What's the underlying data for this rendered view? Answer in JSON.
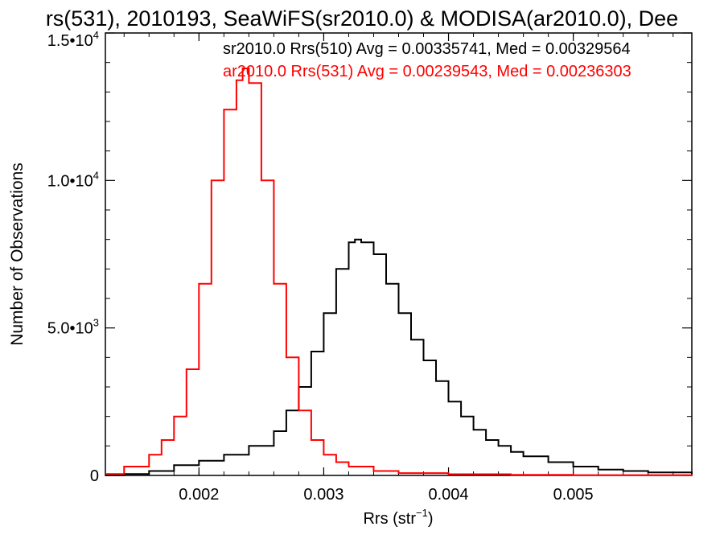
{
  "chart_data": {
    "type": "line",
    "title": "rs(531), 2010193, SeaWiFS(sr2010.0) & MODISA(ar2010.0), Dee",
    "xlabel": "Rrs (str",
    "xlabel_sup": "−1",
    "xlabel_close": ")",
    "ylabel": "Number of Observations",
    "xlim": [
      0.00125,
      0.00595
    ],
    "ylim": [
      0,
      15000
    ],
    "x_ticks": [
      {
        "value": 0.002,
        "label": "0.002"
      },
      {
        "value": 0.003,
        "label": "0.003"
      },
      {
        "value": 0.004,
        "label": "0.004"
      },
      {
        "value": 0.005,
        "label": "0.005"
      }
    ],
    "y_ticks": [
      {
        "value": 0,
        "base": "0",
        "exp": ""
      },
      {
        "value": 5000,
        "base": "5.0•10",
        "exp": "3"
      },
      {
        "value": 10000,
        "base": "1.0•10",
        "exp": "4"
      },
      {
        "value": 15000,
        "base": "1.5•10",
        "exp": "4"
      }
    ],
    "legend_position": "top-right",
    "series": [
      {
        "name": "sr2010.0 Rrs(510) Avg = 0.00335741, Med = 0.00329564",
        "color": "#000000",
        "x": [
          0.00125,
          0.0014,
          0.0016,
          0.0018,
          0.002,
          0.0022,
          0.0024,
          0.0026,
          0.0027,
          0.0028,
          0.0029,
          0.003,
          0.0031,
          0.0032,
          0.00325,
          0.0033,
          0.0034,
          0.0035,
          0.0036,
          0.0037,
          0.0038,
          0.0039,
          0.004,
          0.0041,
          0.0042,
          0.0043,
          0.0044,
          0.0045,
          0.0046,
          0.0048,
          0.005,
          0.0052,
          0.0054,
          0.0056,
          0.00595
        ],
        "y": [
          0,
          50,
          150,
          350,
          500,
          700,
          1000,
          1500,
          2200,
          3000,
          4200,
          5500,
          7000,
          7900,
          8000,
          7900,
          7500,
          6500,
          5500,
          4600,
          3900,
          3200,
          2500,
          2000,
          1550,
          1200,
          1000,
          800,
          650,
          450,
          300,
          200,
          150,
          100,
          50
        ]
      },
      {
        "name": "ar2010.0 Rrs(531) Avg = 0.00239543, Med = 0.00236303",
        "color": "#ff0000",
        "x": [
          0.00125,
          0.0014,
          0.0016,
          0.0017,
          0.0018,
          0.0019,
          0.002,
          0.0021,
          0.0022,
          0.0023,
          0.00235,
          0.0024,
          0.0025,
          0.0026,
          0.0027,
          0.0028,
          0.0029,
          0.003,
          0.0031,
          0.0032,
          0.0034,
          0.0036,
          0.004,
          0.0045,
          0.005,
          0.00595
        ],
        "y": [
          50,
          300,
          700,
          1200,
          2000,
          3600,
          6500,
          10000,
          12400,
          13400,
          13800,
          13300,
          10000,
          6500,
          4000,
          2200,
          1200,
          700,
          450,
          300,
          150,
          80,
          40,
          20,
          10,
          0
        ]
      }
    ]
  }
}
